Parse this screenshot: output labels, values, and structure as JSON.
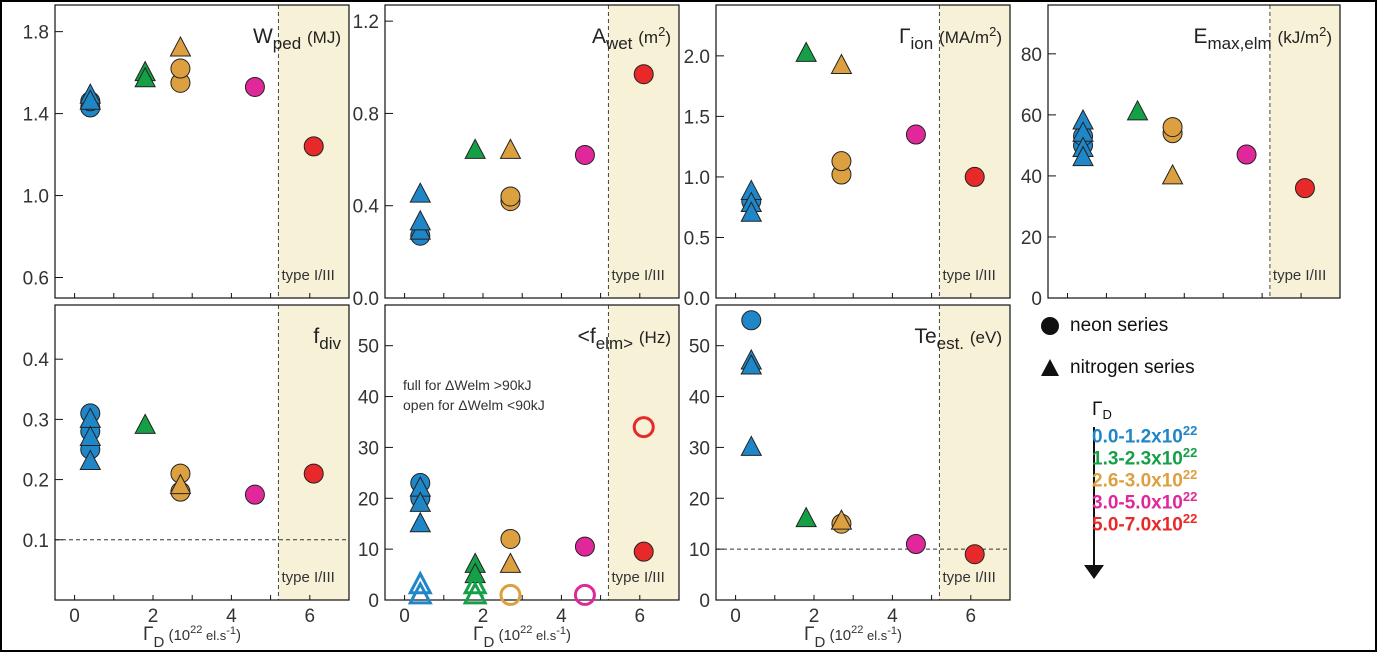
{
  "colors": {
    "blue": "#1f86c8",
    "green": "#15a048",
    "orange": "#dda040",
    "magenta": "#e0289a",
    "red": "#e8292a",
    "shade": "#f7f1d8"
  },
  "chart_data": [
    {
      "type": "scatter",
      "title": "W_ped (MJ)",
      "ylim": [
        0.5,
        1.93
      ],
      "yticks": [
        "0.6",
        "1.0",
        "1.4",
        "1.8"
      ],
      "ytick_values": [
        0.6,
        1.0,
        1.4,
        1.8
      ],
      "xlim": [
        -0.5,
        7
      ],
      "shade_from": 5.2,
      "shade_label": "type I/III",
      "points": [
        {
          "x": 0.4,
          "y": 1.43,
          "shape": "circle",
          "color": "blue"
        },
        {
          "x": 0.4,
          "y": 1.46,
          "shape": "circle",
          "color": "blue"
        },
        {
          "x": 0.4,
          "y": 1.49,
          "shape": "triangle",
          "color": "blue"
        },
        {
          "x": 0.4,
          "y": 1.46,
          "shape": "triangle",
          "color": "blue"
        },
        {
          "x": 1.8,
          "y": 1.6,
          "shape": "triangle",
          "color": "green"
        },
        {
          "x": 1.8,
          "y": 1.57,
          "shape": "triangle",
          "color": "green"
        },
        {
          "x": 2.7,
          "y": 1.55,
          "shape": "circle",
          "color": "orange"
        },
        {
          "x": 2.7,
          "y": 1.62,
          "shape": "circle",
          "color": "orange"
        },
        {
          "x": 2.7,
          "y": 1.72,
          "shape": "triangle",
          "color": "orange"
        },
        {
          "x": 4.6,
          "y": 1.53,
          "shape": "circle",
          "color": "magenta"
        },
        {
          "x": 6.1,
          "y": 1.24,
          "shape": "circle",
          "color": "red"
        }
      ]
    },
    {
      "type": "scatter",
      "title": "A_wet (m2)",
      "ylim": [
        0,
        1.27
      ],
      "yticks": [
        "0.0",
        "0.4",
        "0.8",
        "1.2"
      ],
      "ytick_values": [
        0,
        0.4,
        0.8,
        1.2
      ],
      "xlim": [
        -0.5,
        7
      ],
      "shade_from": 5.2,
      "shade_label": "type I/III",
      "points": [
        {
          "x": 0.4,
          "y": 0.27,
          "shape": "circle",
          "color": "blue"
        },
        {
          "x": 0.4,
          "y": 0.29,
          "shape": "triangle",
          "color": "blue"
        },
        {
          "x": 0.4,
          "y": 0.33,
          "shape": "triangle",
          "color": "blue"
        },
        {
          "x": 0.4,
          "y": 0.45,
          "shape": "triangle",
          "color": "blue"
        },
        {
          "x": 1.8,
          "y": 0.64,
          "shape": "triangle",
          "color": "green"
        },
        {
          "x": 2.7,
          "y": 0.42,
          "shape": "circle",
          "color": "orange"
        },
        {
          "x": 2.7,
          "y": 0.44,
          "shape": "circle",
          "color": "orange"
        },
        {
          "x": 2.7,
          "y": 0.64,
          "shape": "triangle",
          "color": "orange"
        },
        {
          "x": 4.6,
          "y": 0.62,
          "shape": "circle",
          "color": "magenta"
        },
        {
          "x": 6.1,
          "y": 0.97,
          "shape": "circle",
          "color": "red"
        }
      ]
    },
    {
      "type": "scatter",
      "title": "Γ_ion (MA/m2)",
      "ylim": [
        0,
        2.42
      ],
      "yticks": [
        "0.0",
        "0.5",
        "1.0",
        "1.5",
        "2.0"
      ],
      "ytick_values": [
        0,
        0.5,
        1.0,
        1.5,
        2.0
      ],
      "xlim": [
        -0.5,
        7
      ],
      "shade_from": 5.2,
      "shade_label": "type I/III",
      "points": [
        {
          "x": 0.4,
          "y": 0.8,
          "shape": "circle",
          "color": "blue"
        },
        {
          "x": 0.4,
          "y": 0.88,
          "shape": "triangle",
          "color": "blue"
        },
        {
          "x": 0.4,
          "y": 0.78,
          "shape": "triangle",
          "color": "blue"
        },
        {
          "x": 0.4,
          "y": 0.7,
          "shape": "triangle",
          "color": "blue"
        },
        {
          "x": 1.8,
          "y": 2.02,
          "shape": "triangle",
          "color": "green"
        },
        {
          "x": 2.7,
          "y": 1.02,
          "shape": "circle",
          "color": "orange"
        },
        {
          "x": 2.7,
          "y": 1.13,
          "shape": "circle",
          "color": "orange"
        },
        {
          "x": 2.7,
          "y": 1.92,
          "shape": "triangle",
          "color": "orange"
        },
        {
          "x": 4.6,
          "y": 1.35,
          "shape": "circle",
          "color": "magenta"
        },
        {
          "x": 6.1,
          "y": 1.0,
          "shape": "circle",
          "color": "red"
        }
      ]
    },
    {
      "type": "scatter",
      "title": "E_max,elm (kJ/m2)",
      "ylim": [
        0,
        96
      ],
      "yticks": [
        "0",
        "20",
        "40",
        "60",
        "80"
      ],
      "ytick_values": [
        0,
        20,
        40,
        60,
        80
      ],
      "xlim": [
        -0.5,
        7
      ],
      "shade_from": 5.2,
      "shade_label": "type I/III",
      "points": [
        {
          "x": 0.4,
          "y": 50,
          "shape": "circle",
          "color": "blue"
        },
        {
          "x": 0.4,
          "y": 53,
          "shape": "circle",
          "color": "blue"
        },
        {
          "x": 0.4,
          "y": 58,
          "shape": "triangle",
          "color": "blue"
        },
        {
          "x": 0.4,
          "y": 54,
          "shape": "triangle",
          "color": "blue"
        },
        {
          "x": 0.4,
          "y": 49,
          "shape": "triangle",
          "color": "blue"
        },
        {
          "x": 0.4,
          "y": 46,
          "shape": "triangle",
          "color": "blue"
        },
        {
          "x": 1.8,
          "y": 61,
          "shape": "triangle",
          "color": "green"
        },
        {
          "x": 2.7,
          "y": 54,
          "shape": "circle",
          "color": "orange"
        },
        {
          "x": 2.7,
          "y": 56,
          "shape": "circle",
          "color": "orange"
        },
        {
          "x": 2.7,
          "y": 40,
          "shape": "triangle",
          "color": "orange"
        },
        {
          "x": 4.6,
          "y": 47,
          "shape": "circle",
          "color": "magenta"
        },
        {
          "x": 6.1,
          "y": 36,
          "shape": "circle",
          "color": "red"
        }
      ]
    },
    {
      "type": "scatter",
      "title": "f_div",
      "ylim": [
        0,
        0.49
      ],
      "yticks": [
        "0.1",
        "0.2",
        "0.3",
        "0.4"
      ],
      "ytick_values": [
        0.1,
        0.2,
        0.3,
        0.4
      ],
      "xlim": [
        -0.5,
        7
      ],
      "shade_from": 5.2,
      "shade_label": "type I/III",
      "hline": 0.1,
      "points": [
        {
          "x": 0.4,
          "y": 0.31,
          "shape": "circle",
          "color": "blue"
        },
        {
          "x": 0.4,
          "y": 0.28,
          "shape": "circle",
          "color": "blue"
        },
        {
          "x": 0.4,
          "y": 0.25,
          "shape": "circle",
          "color": "blue"
        },
        {
          "x": 0.4,
          "y": 0.3,
          "shape": "triangle",
          "color": "blue"
        },
        {
          "x": 0.4,
          "y": 0.27,
          "shape": "triangle",
          "color": "blue"
        },
        {
          "x": 0.4,
          "y": 0.23,
          "shape": "triangle",
          "color": "blue"
        },
        {
          "x": 1.8,
          "y": 0.29,
          "shape": "triangle",
          "color": "green"
        },
        {
          "x": 2.7,
          "y": 0.18,
          "shape": "circle",
          "color": "orange"
        },
        {
          "x": 2.7,
          "y": 0.21,
          "shape": "circle",
          "color": "orange"
        },
        {
          "x": 2.7,
          "y": 0.19,
          "shape": "triangle",
          "color": "orange"
        },
        {
          "x": 4.6,
          "y": 0.175,
          "shape": "circle",
          "color": "magenta"
        },
        {
          "x": 6.1,
          "y": 0.21,
          "shape": "circle",
          "color": "red"
        }
      ],
      "xlabel": "Γ_D (10^22 el.s^-1)",
      "xticks": [
        "0",
        "2",
        "4",
        "6"
      ],
      "xtick_values": [
        0,
        2,
        4,
        6
      ]
    },
    {
      "type": "scatter",
      "title": "<f_elm> (Hz)",
      "ylim": [
        0,
        58
      ],
      "yticks": [
        "0",
        "10",
        "20",
        "30",
        "40",
        "50"
      ],
      "ytick_values": [
        0,
        10,
        20,
        30,
        40,
        50
      ],
      "xlim": [
        -0.5,
        7
      ],
      "shade_from": 5.2,
      "shade_label": "type I/III",
      "annotation": [
        "full for ΔWelm >90kJ",
        "open for ΔWelm <90kJ"
      ],
      "points": [
        {
          "x": 0.4,
          "y": 23,
          "shape": "circle",
          "color": "blue"
        },
        {
          "x": 0.4,
          "y": 20,
          "shape": "circle",
          "color": "blue"
        },
        {
          "x": 0.4,
          "y": 22,
          "shape": "triangle",
          "color": "blue"
        },
        {
          "x": 0.4,
          "y": 19,
          "shape": "triangle",
          "color": "blue"
        },
        {
          "x": 0.4,
          "y": 15,
          "shape": "triangle",
          "color": "blue"
        },
        {
          "x": 0.4,
          "y": 3,
          "shape": "triangle",
          "color": "blue",
          "open": true
        },
        {
          "x": 0.4,
          "y": 1,
          "shape": "triangle",
          "color": "blue",
          "open": true
        },
        {
          "x": 1.8,
          "y": 7,
          "shape": "triangle",
          "color": "green"
        },
        {
          "x": 1.8,
          "y": 5,
          "shape": "triangle",
          "color": "green"
        },
        {
          "x": 1.8,
          "y": 3,
          "shape": "triangle",
          "color": "green",
          "open": true
        },
        {
          "x": 1.8,
          "y": 1,
          "shape": "triangle",
          "color": "green",
          "open": true
        },
        {
          "x": 2.7,
          "y": 12,
          "shape": "circle",
          "color": "orange"
        },
        {
          "x": 2.7,
          "y": 7,
          "shape": "triangle",
          "color": "orange"
        },
        {
          "x": 2.7,
          "y": 1,
          "shape": "circle",
          "color": "orange",
          "open": true
        },
        {
          "x": 4.6,
          "y": 10.5,
          "shape": "circle",
          "color": "magenta"
        },
        {
          "x": 4.6,
          "y": 1,
          "shape": "circle",
          "color": "magenta",
          "open": true
        },
        {
          "x": 6.1,
          "y": 9.5,
          "shape": "circle",
          "color": "red"
        },
        {
          "x": 6.1,
          "y": 34,
          "shape": "circle",
          "color": "red",
          "open": true
        }
      ],
      "xlabel": "Γ_D (10^22 el.s^-1)",
      "xticks": [
        "0",
        "2",
        "4",
        "6"
      ],
      "xtick_values": [
        0,
        2,
        4,
        6
      ]
    },
    {
      "type": "scatter",
      "title": "Te_est. (eV)",
      "ylim": [
        0,
        58
      ],
      "yticks": [
        "0",
        "10",
        "20",
        "30",
        "40",
        "50"
      ],
      "ytick_values": [
        0,
        10,
        20,
        30,
        40,
        50
      ],
      "xlim": [
        -0.5,
        7
      ],
      "shade_from": 5.2,
      "shade_label": "type I/III",
      "hline": 10,
      "points": [
        {
          "x": 0.4,
          "y": 55,
          "shape": "circle",
          "color": "blue"
        },
        {
          "x": 0.4,
          "y": 47,
          "shape": "triangle",
          "color": "blue"
        },
        {
          "x": 0.4,
          "y": 46,
          "shape": "triangle",
          "color": "blue"
        },
        {
          "x": 0.4,
          "y": 30,
          "shape": "triangle",
          "color": "blue"
        },
        {
          "x": 1.8,
          "y": 16,
          "shape": "triangle",
          "color": "green"
        },
        {
          "x": 2.7,
          "y": 15,
          "shape": "circle",
          "color": "orange"
        },
        {
          "x": 2.7,
          "y": 15.5,
          "shape": "triangle",
          "color": "orange"
        },
        {
          "x": 4.6,
          "y": 11,
          "shape": "circle",
          "color": "magenta"
        },
        {
          "x": 6.1,
          "y": 9,
          "shape": "circle",
          "color": "red"
        }
      ],
      "xlabel": "Γ_D (10^22 el.s^-1)",
      "xticks": [
        "0",
        "2",
        "4",
        "6"
      ],
      "xtick_values": [
        0,
        2,
        4,
        6
      ]
    }
  ],
  "legend": {
    "neon": "neon series",
    "nitrogen": "nitrogen series",
    "gamma_symbol": "Γ",
    "gamma_sub": "D",
    "ranges": [
      {
        "base": "0.0-1.2x10",
        "exp": "22",
        "color": "blue"
      },
      {
        "base": "1.3-2.3x10",
        "exp": "22",
        "color": "green"
      },
      {
        "base": "2.6-3.0x10",
        "exp": "22",
        "color": "orange"
      },
      {
        "base": "3.0-5.0x10",
        "exp": "22",
        "color": "magenta"
      },
      {
        "base": "5.0-7.0x10",
        "exp": "22",
        "color": "red"
      }
    ]
  }
}
